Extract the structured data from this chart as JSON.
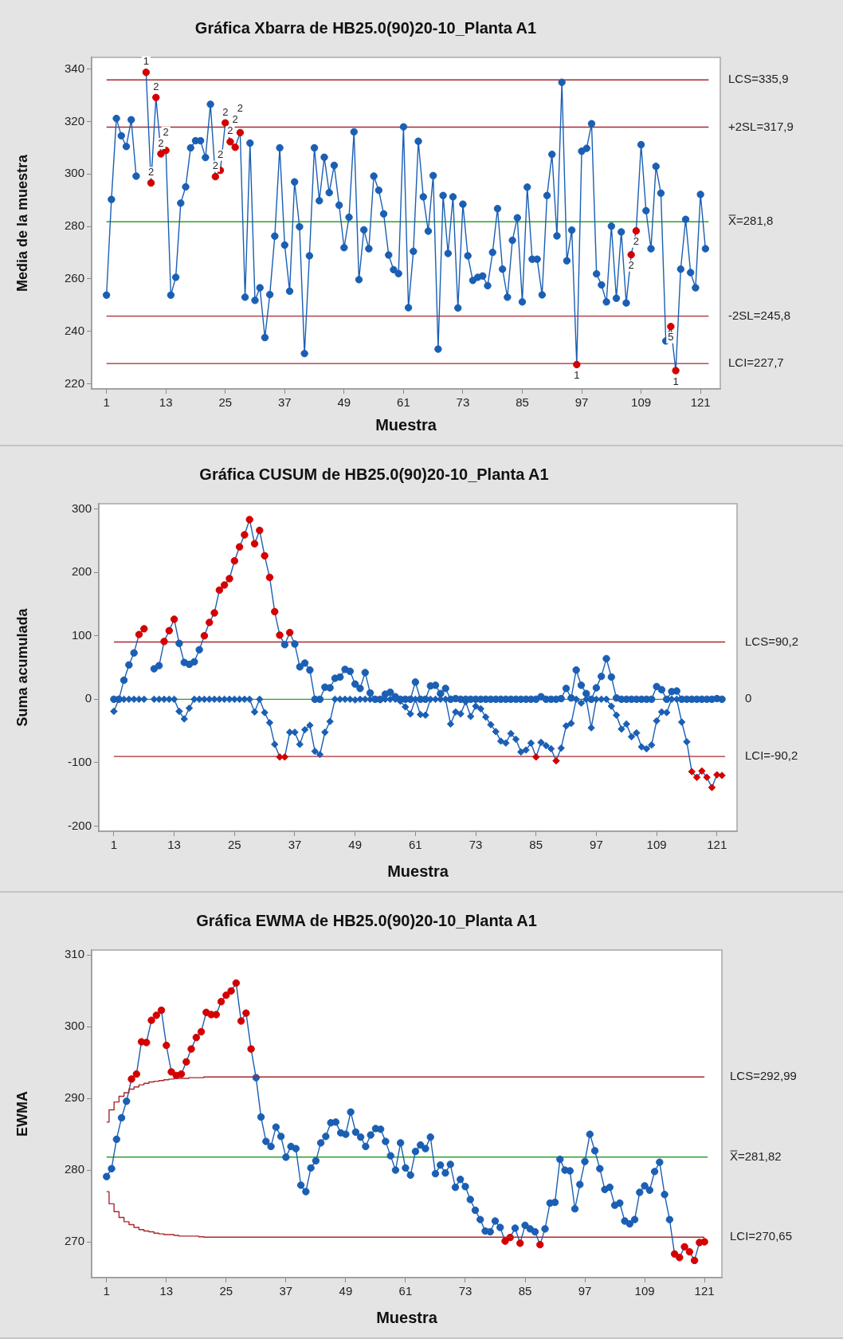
{
  "chart_data": [
    {
      "type": "line",
      "title": "Gráfica Xbarra de HB25.0(90)20-10_Planta A1",
      "xlabel": "Muestra",
      "ylabel": "Media de la muestra",
      "x": [
        1,
        2,
        3,
        4,
        5,
        6,
        7,
        8,
        9,
        10,
        11,
        12,
        13,
        14,
        15,
        16,
        17,
        18,
        19,
        20,
        21,
        22,
        23,
        24,
        25,
        26,
        27,
        28,
        29,
        30,
        31,
        32,
        33,
        34,
        35,
        36,
        37,
        38,
        39,
        40,
        41,
        42,
        43,
        44,
        45,
        46,
        47,
        48,
        49,
        50,
        51,
        52,
        53,
        54,
        55,
        56,
        57,
        58,
        59,
        60,
        61,
        62,
        63,
        64,
        65,
        66,
        67,
        68,
        69,
        70,
        71,
        72,
        73,
        74,
        75,
        76,
        77,
        78,
        79,
        80,
        81,
        82,
        83,
        84,
        85,
        86,
        87,
        88,
        89,
        90,
        91,
        92,
        93,
        94,
        95,
        96,
        97,
        98,
        99,
        100,
        101,
        102,
        103,
        104,
        105,
        106,
        107,
        108,
        109,
        110,
        111,
        112,
        113,
        114,
        115,
        116,
        117,
        118,
        119,
        120,
        121,
        122
      ],
      "xlim": [
        -2,
        125
      ],
      "xticks": [
        1,
        13,
        25,
        37,
        49,
        61,
        73,
        85,
        97,
        109,
        121
      ],
      "ylim": [
        218,
        344.5
      ],
      "yticks": [
        220,
        240,
        260,
        280,
        300,
        320,
        340
      ],
      "series": [
        {
          "color": "#1a5fb4",
          "marker": "circle",
          "values": [
            253.8,
            290.3,
            321.2,
            314.6,
            310.5,
            320.7,
            299.2,
            null,
            338.8,
            296.6,
            329.2,
            307.7,
            309.0,
            253.8,
            260.6,
            288.9,
            295.1,
            310.0,
            312.7,
            312.7,
            306.3,
            326.6,
            299.0,
            301.4,
            319.5,
            312.3,
            310.2,
            315.8,
            253.0,
            311.8,
            251.8,
            256.6,
            237.6,
            254.0,
            276.3,
            310.0,
            272.9,
            255.3,
            297.0,
            279.9,
            231.5,
            268.8,
            310.0,
            289.8,
            306.4,
            292.9,
            303.3,
            288.1,
            271.9,
            283.5,
            316.1,
            259.7,
            278.7,
            271.5,
            299.2,
            293.8,
            284.8,
            269.1,
            263.5,
            262.0,
            318.0,
            249.0,
            270.5,
            312.5,
            291.3,
            278.2,
            299.4,
            233.2,
            291.8,
            269.7,
            291.3,
            248.9,
            288.5,
            268.8,
            259.4,
            260.6,
            261.1,
            257.4,
            270.1,
            286.8,
            263.7,
            253.0,
            274.7,
            283.3,
            251.2,
            295.0,
            267.5,
            267.5,
            253.9,
            291.8,
            307.5,
            276.4,
            335.0,
            266.9,
            278.6,
            227.3,
            308.7,
            309.8,
            319.2,
            261.9,
            257.7,
            251.2,
            280.1,
            252.6,
            277.9,
            250.8,
            269.2,
            278.3,
            311.2,
            286.0,
            271.5,
            302.9,
            292.7,
            236.3,
            241.8,
            225.0,
            263.7,
            282.7,
            262.4,
            256.6,
            292.2,
            271.5
          ],
          "colors": [
            "#1a5fb4",
            "#1a5fb4",
            "#1a5fb4",
            "#1a5fb4",
            "#1a5fb4",
            "#1a5fb4",
            "#1a5fb4",
            "#1a5fb4",
            "#d40000",
            "#d40000",
            "#d40000",
            "#d40000",
            "#d40000",
            "#1a5fb4",
            "#1a5fb4",
            "#1a5fb4",
            "#1a5fb4",
            "#1a5fb4",
            "#1a5fb4",
            "#1a5fb4",
            "#1a5fb4",
            "#1a5fb4",
            "#d40000",
            "#d40000",
            "#d40000",
            "#d40000",
            "#d40000",
            "#d40000",
            "#1a5fb4",
            "#1a5fb4",
            "#1a5fb4",
            "#1a5fb4",
            "#1a5fb4",
            "#1a5fb4",
            "#1a5fb4",
            "#1a5fb4",
            "#1a5fb4",
            "#1a5fb4",
            "#1a5fb4",
            "#1a5fb4",
            "#1a5fb4",
            "#1a5fb4",
            "#1a5fb4",
            "#1a5fb4",
            "#1a5fb4",
            "#1a5fb4",
            "#1a5fb4",
            "#1a5fb4",
            "#1a5fb4",
            "#1a5fb4",
            "#1a5fb4",
            "#1a5fb4",
            "#1a5fb4",
            "#1a5fb4",
            "#1a5fb4",
            "#1a5fb4",
            "#1a5fb4",
            "#1a5fb4",
            "#1a5fb4",
            "#1a5fb4",
            "#1a5fb4",
            "#1a5fb4",
            "#1a5fb4",
            "#1a5fb4",
            "#1a5fb4",
            "#1a5fb4",
            "#1a5fb4",
            "#1a5fb4",
            "#1a5fb4",
            "#1a5fb4",
            "#1a5fb4",
            "#1a5fb4",
            "#1a5fb4",
            "#1a5fb4",
            "#1a5fb4",
            "#1a5fb4",
            "#1a5fb4",
            "#1a5fb4",
            "#1a5fb4",
            "#1a5fb4",
            "#1a5fb4",
            "#1a5fb4",
            "#1a5fb4",
            "#1a5fb4",
            "#1a5fb4",
            "#1a5fb4",
            "#1a5fb4",
            "#1a5fb4",
            "#1a5fb4",
            "#1a5fb4",
            "#1a5fb4",
            "#1a5fb4",
            "#1a5fb4",
            "#1a5fb4",
            "#1a5fb4",
            "#d40000",
            "#1a5fb4",
            "#1a5fb4",
            "#1a5fb4",
            "#1a5fb4",
            "#1a5fb4",
            "#1a5fb4",
            "#1a5fb4",
            "#1a5fb4",
            "#1a5fb4",
            "#1a5fb4",
            "#d40000",
            "#d40000",
            "#1a5fb4",
            "#1a5fb4",
            "#1a5fb4",
            "#1a5fb4",
            "#1a5fb4",
            "#1a5fb4",
            "#d40000",
            "#d40000",
            "#1a5fb4",
            "#1a5fb4",
            "#1a5fb4",
            "#1a5fb4",
            "#1a5fb4",
            "#1a5fb4"
          ]
        }
      ],
      "ref_lines": [
        {
          "axis": "y",
          "value": 335.9,
          "label": "LCS=335,9",
          "color": "#a8282c"
        },
        {
          "axis": "y",
          "value": 317.9,
          "label": "+2SL=317,9",
          "color": "#a8282c"
        },
        {
          "axis": "y",
          "value": 281.8,
          "label": "X̿=281,8",
          "color": "#2e9e2e"
        },
        {
          "axis": "y",
          "value": 245.8,
          "label": "-2SL=245,8",
          "color": "#a8282c"
        },
        {
          "axis": "y",
          "value": 227.7,
          "label": "LCI=227,7",
          "color": "#a8282c"
        }
      ],
      "annotations": [
        {
          "text": "1",
          "x": 9,
          "y": 338.8
        },
        {
          "text": "2",
          "x": 10,
          "y": 296.6
        },
        {
          "text": "2",
          "x": 11,
          "y": 329.2
        },
        {
          "text": "2",
          "x": 12,
          "y": 307.7
        },
        {
          "text": "2",
          "x": 13,
          "y": 309.0
        },
        {
          "text": "2",
          "x": 23,
          "y": 299.0
        },
        {
          "text": "2",
          "x": 24,
          "y": 301.4
        },
        {
          "text": "2",
          "x": 25,
          "y": 319.5
        },
        {
          "text": "2",
          "x": 26,
          "y": 312.3
        },
        {
          "text": "2",
          "x": 27,
          "y": 310.2
        },
        {
          "text": "2",
          "x": 28,
          "y": 315.8
        },
        {
          "text": "1",
          "x": 96,
          "y": 227.3
        },
        {
          "text": "2",
          "x": 107,
          "y": 269.2
        },
        {
          "text": "2",
          "x": 108,
          "y": 278.3
        },
        {
          "text": "5",
          "x": 115,
          "y": 241.8
        },
        {
          "text": "1",
          "x": 116,
          "y": 225.0
        }
      ]
    },
    {
      "type": "line",
      "title": "Gráfica CUSUM de HB25.0(90)20-10_Planta A1",
      "xlabel": "Muestra",
      "ylabel": "Suma acumulada",
      "x": [
        1,
        2,
        3,
        4,
        5,
        6,
        7,
        8,
        9,
        10,
        11,
        12,
        13,
        14,
        15,
        16,
        17,
        18,
        19,
        20,
        21,
        22,
        23,
        24,
        25,
        26,
        27,
        28,
        29,
        30,
        31,
        32,
        33,
        34,
        35,
        36,
        37,
        38,
        39,
        40,
        41,
        42,
        43,
        44,
        45,
        46,
        47,
        48,
        49,
        50,
        51,
        52,
        53,
        54,
        55,
        56,
        57,
        58,
        59,
        60,
        61,
        62,
        63,
        64,
        65,
        66,
        67,
        68,
        69,
        70,
        71,
        72,
        73,
        74,
        75,
        76,
        77,
        78,
        79,
        80,
        81,
        82,
        83,
        84,
        85,
        86,
        87,
        88,
        89,
        90,
        91,
        92,
        93,
        94,
        95,
        96,
        97,
        98,
        99,
        100,
        101,
        102,
        103,
        104,
        105,
        106,
        107,
        108,
        109,
        110,
        111,
        112,
        113,
        114,
        115,
        116,
        117,
        118,
        119,
        120,
        121,
        122
      ],
      "xlim": [
        -2,
        125
      ],
      "xticks": [
        1,
        13,
        25,
        37,
        49,
        61,
        73,
        85,
        97,
        109,
        121
      ],
      "ylim": [
        -208,
        308
      ],
      "yticks": [
        -200,
        -100,
        0,
        100,
        200,
        300
      ],
      "series": [
        {
          "color": "#1a5fb4",
          "marker": "circle",
          "values": [
            0,
            0,
            30,
            54,
            73,
            102,
            111,
            null,
            48,
            53,
            91,
            108,
            126,
            88,
            58,
            55,
            59,
            78,
            100,
            121,
            136,
            172,
            180,
            190,
            218,
            240,
            259,
            283,
            245,
            266,
            226,
            192,
            138,
            101,
            86,
            105,
            87,
            51,
            57,
            46,
            0,
            0,
            19,
            18,
            33,
            35,
            47,
            44,
            24,
            17,
            42,
            10,
            0,
            0,
            8,
            11,
            4,
            0,
            0,
            0,
            27,
            0,
            0,
            21,
            22,
            9,
            17,
            0,
            1,
            0,
            0,
            0,
            0,
            0,
            0,
            0,
            0,
            0,
            0,
            0,
            0,
            0,
            0,
            0,
            0,
            4,
            0,
            0,
            0,
            1,
            17,
            2,
            46,
            22,
            9,
            0,
            18,
            36,
            64,
            35,
            2,
            0,
            0,
            0,
            0,
            0,
            0,
            0,
            20,
            15,
            0,
            12,
            13,
            0,
            0,
            0,
            0,
            0,
            0,
            0,
            1,
            0
          ],
          "colors": [
            "#1a5fb4",
            "#1a5fb4",
            "#1a5fb4",
            "#1a5fb4",
            "#1a5fb4",
            "#d40000",
            "#d40000",
            "#1a5fb4",
            "#1a5fb4",
            "#1a5fb4",
            "#d40000",
            "#d40000",
            "#d40000",
            "#1a5fb4",
            "#1a5fb4",
            "#1a5fb4",
            "#1a5fb4",
            "#1a5fb4",
            "#d40000",
            "#d40000",
            "#d40000",
            "#d40000",
            "#d40000",
            "#d40000",
            "#d40000",
            "#d40000",
            "#d40000",
            "#d40000",
            "#d40000",
            "#d40000",
            "#d40000",
            "#d40000",
            "#d40000",
            "#d40000",
            "#1a5fb4",
            "#d40000",
            "#1a5fb4",
            "#1a5fb4",
            "#1a5fb4",
            "#1a5fb4",
            "#1a5fb4",
            "#1a5fb4",
            "#1a5fb4",
            "#1a5fb4",
            "#1a5fb4",
            "#1a5fb4",
            "#1a5fb4",
            "#1a5fb4",
            "#1a5fb4",
            "#1a5fb4",
            "#1a5fb4",
            "#1a5fb4",
            "#1a5fb4",
            "#1a5fb4",
            "#1a5fb4",
            "#1a5fb4",
            "#1a5fb4",
            "#1a5fb4",
            "#1a5fb4",
            "#1a5fb4",
            "#1a5fb4",
            "#1a5fb4",
            "#1a5fb4",
            "#1a5fb4",
            "#1a5fb4",
            "#1a5fb4",
            "#1a5fb4",
            "#1a5fb4",
            "#1a5fb4",
            "#1a5fb4",
            "#1a5fb4",
            "#1a5fb4",
            "#1a5fb4",
            "#1a5fb4",
            "#1a5fb4",
            "#1a5fb4",
            "#1a5fb4",
            "#1a5fb4",
            "#1a5fb4",
            "#1a5fb4",
            "#1a5fb4",
            "#1a5fb4",
            "#1a5fb4",
            "#1a5fb4",
            "#1a5fb4",
            "#1a5fb4",
            "#1a5fb4",
            "#1a5fb4",
            "#1a5fb4",
            "#1a5fb4",
            "#1a5fb4",
            "#1a5fb4",
            "#1a5fb4",
            "#1a5fb4",
            "#1a5fb4",
            "#1a5fb4",
            "#1a5fb4",
            "#1a5fb4",
            "#1a5fb4",
            "#1a5fb4",
            "#1a5fb4",
            "#1a5fb4",
            "#1a5fb4",
            "#1a5fb4",
            "#1a5fb4",
            "#1a5fb4",
            "#1a5fb4",
            "#1a5fb4",
            "#1a5fb4",
            "#1a5fb4",
            "#1a5fb4",
            "#1a5fb4",
            "#1a5fb4",
            "#1a5fb4",
            "#1a5fb4",
            "#1a5fb4",
            "#1a5fb4",
            "#1a5fb4",
            "#1a5fb4",
            "#1a5fb4",
            "#1a5fb4",
            "#1a5fb4"
          ]
        },
        {
          "color": "#1a5fb4",
          "marker": "diamond",
          "values": [
            -19,
            0,
            0,
            0,
            0,
            0,
            0,
            null,
            0,
            0,
            0,
            0,
            0,
            -19,
            -31,
            -14,
            0,
            0,
            0,
            0,
            0,
            0,
            0,
            0,
            0,
            0,
            0,
            0,
            -20,
            0,
            -21,
            -37,
            -71,
            -91,
            -91,
            -52,
            -52,
            -71,
            -48,
            -41,
            -82,
            -87,
            -52,
            -35,
            0,
            0,
            0,
            0,
            -1,
            0,
            0,
            0,
            0,
            -1,
            0,
            0,
            0,
            -3,
            -12,
            -23,
            0,
            -24,
            -25,
            0,
            0,
            0,
            0,
            -39,
            -20,
            -23,
            -4,
            -27,
            -11,
            -15,
            -28,
            -40,
            -51,
            -66,
            -69,
            -54,
            -63,
            -83,
            -80,
            -69,
            -91,
            -68,
            -73,
            -78,
            -97,
            -77,
            -42,
            -38,
            0,
            -6,
            0,
            -45,
            0,
            0,
            0,
            -11,
            -25,
            -47,
            -39,
            -59,
            -53,
            -75,
            -78,
            -72,
            -34,
            -20,
            -21,
            0,
            0,
            -36,
            -67,
            -114,
            -123,
            -113,
            -123,
            -139,
            -119,
            -120
          ],
          "colors": [
            "#1a5fb4",
            "#1a5fb4",
            "#1a5fb4",
            "#1a5fb4",
            "#1a5fb4",
            "#1a5fb4",
            "#1a5fb4",
            "#1a5fb4",
            "#1a5fb4",
            "#1a5fb4",
            "#1a5fb4",
            "#1a5fb4",
            "#1a5fb4",
            "#1a5fb4",
            "#1a5fb4",
            "#1a5fb4",
            "#1a5fb4",
            "#1a5fb4",
            "#1a5fb4",
            "#1a5fb4",
            "#1a5fb4",
            "#1a5fb4",
            "#1a5fb4",
            "#1a5fb4",
            "#1a5fb4",
            "#1a5fb4",
            "#1a5fb4",
            "#1a5fb4",
            "#1a5fb4",
            "#1a5fb4",
            "#1a5fb4",
            "#1a5fb4",
            "#1a5fb4",
            "#d40000",
            "#d40000",
            "#1a5fb4",
            "#1a5fb4",
            "#1a5fb4",
            "#1a5fb4",
            "#1a5fb4",
            "#1a5fb4",
            "#1a5fb4",
            "#1a5fb4",
            "#1a5fb4",
            "#1a5fb4",
            "#1a5fb4",
            "#1a5fb4",
            "#1a5fb4",
            "#1a5fb4",
            "#1a5fb4",
            "#1a5fb4",
            "#1a5fb4",
            "#1a5fb4",
            "#1a5fb4",
            "#1a5fb4",
            "#1a5fb4",
            "#1a5fb4",
            "#1a5fb4",
            "#1a5fb4",
            "#1a5fb4",
            "#1a5fb4",
            "#1a5fb4",
            "#1a5fb4",
            "#1a5fb4",
            "#1a5fb4",
            "#1a5fb4",
            "#1a5fb4",
            "#1a5fb4",
            "#1a5fb4",
            "#1a5fb4",
            "#1a5fb4",
            "#1a5fb4",
            "#1a5fb4",
            "#1a5fb4",
            "#1a5fb4",
            "#1a5fb4",
            "#1a5fb4",
            "#1a5fb4",
            "#1a5fb4",
            "#1a5fb4",
            "#1a5fb4",
            "#1a5fb4",
            "#1a5fb4",
            "#1a5fb4",
            "#d40000",
            "#1a5fb4",
            "#1a5fb4",
            "#1a5fb4",
            "#d40000",
            "#1a5fb4",
            "#1a5fb4",
            "#1a5fb4",
            "#1a5fb4",
            "#1a5fb4",
            "#1a5fb4",
            "#1a5fb4",
            "#1a5fb4",
            "#1a5fb4",
            "#1a5fb4",
            "#1a5fb4",
            "#1a5fb4",
            "#1a5fb4",
            "#1a5fb4",
            "#1a5fb4",
            "#1a5fb4",
            "#1a5fb4",
            "#1a5fb4",
            "#1a5fb4",
            "#1a5fb4",
            "#1a5fb4",
            "#1a5fb4",
            "#1a5fb4",
            "#1a5fb4",
            "#1a5fb4",
            "#1a5fb4",
            "#d40000",
            "#d40000",
            "#d40000",
            "#d40000",
            "#d40000",
            "#d40000",
            "#d40000"
          ]
        }
      ],
      "ref_lines": [
        {
          "axis": "y",
          "value": 90.2,
          "label": "LCS=90,2",
          "color": "#a8282c"
        },
        {
          "axis": "y",
          "value": 0,
          "label": "0",
          "color": "#2e9e2e"
        },
        {
          "axis": "y",
          "value": -90.2,
          "label": "LCI=-90,2",
          "color": "#a8282c"
        }
      ]
    },
    {
      "type": "line",
      "title": "Gráfica EWMA de HB25.0(90)20-10_Planta A1",
      "xlabel": "Muestra",
      "ylabel": "EWMA",
      "x": [
        1,
        2,
        3,
        4,
        5,
        6,
        7,
        8,
        9,
        10,
        11,
        12,
        13,
        14,
        15,
        16,
        17,
        18,
        19,
        20,
        21,
        22,
        23,
        24,
        25,
        26,
        27,
        28,
        29,
        30,
        31,
        32,
        33,
        34,
        35,
        36,
        37,
        38,
        39,
        40,
        41,
        42,
        43,
        44,
        45,
        46,
        47,
        48,
        49,
        50,
        51,
        52,
        53,
        54,
        55,
        56,
        57,
        58,
        59,
        60,
        61,
        62,
        63,
        64,
        65,
        66,
        67,
        68,
        69,
        70,
        71,
        72,
        73,
        74,
        75,
        76,
        77,
        78,
        79,
        80,
        81,
        82,
        83,
        84,
        85,
        86,
        87,
        88,
        89,
        90,
        91,
        92,
        93,
        94,
        95,
        96,
        97,
        98,
        99,
        100,
        101,
        102,
        103,
        104,
        105,
        106,
        107,
        108,
        109,
        110,
        111,
        112,
        113,
        114,
        115,
        116,
        117,
        118,
        119,
        120,
        121
      ],
      "xlim": [
        -2,
        124.5
      ],
      "xticks": [
        1,
        13,
        25,
        37,
        49,
        61,
        73,
        85,
        97,
        109,
        121
      ],
      "ylim": [
        265,
        310.7
      ],
      "yticks": [
        270,
        280,
        290,
        300,
        310
      ],
      "series": [
        {
          "type": "step",
          "color": "#a8282c",
          "marker": "none",
          "x": [
            1,
            2,
            3,
            4,
            5,
            6,
            7,
            8,
            9,
            10,
            11,
            12,
            13,
            14,
            15,
            16,
            17,
            18,
            19,
            20,
            21,
            121
          ],
          "values": [
            286.7,
            288.4,
            289.5,
            290.3,
            290.8,
            291.3,
            291.6,
            291.9,
            292.1,
            292.3,
            292.4,
            292.5,
            292.6,
            292.7,
            292.8,
            292.8,
            292.8,
            292.9,
            292.9,
            292.9,
            292.99,
            292.99
          ]
        },
        {
          "type": "step",
          "color": "#a8282c",
          "marker": "none",
          "x": [
            1,
            2,
            3,
            4,
            5,
            6,
            7,
            8,
            9,
            10,
            11,
            12,
            13,
            14,
            15,
            16,
            17,
            18,
            19,
            20,
            21,
            121
          ],
          "values": [
            277.0,
            275.3,
            274.2,
            273.4,
            272.8,
            272.4,
            272.0,
            271.7,
            271.5,
            271.4,
            271.2,
            271.1,
            271.0,
            271.0,
            270.9,
            270.8,
            270.8,
            270.8,
            270.8,
            270.7,
            270.65,
            270.65
          ]
        },
        {
          "color": "#1a5fb4",
          "marker": "circle",
          "values": [
            279.1,
            280.2,
            284.3,
            287.3,
            289.6,
            292.7,
            293.4,
            297.9,
            297.8,
            300.9,
            301.6,
            302.3,
            297.4,
            293.7,
            293.2,
            293.4,
            295.1,
            296.9,
            298.5,
            299.3,
            302.0,
            301.7,
            301.7,
            303.5,
            304.4,
            305.0,
            306.1,
            300.8,
            301.9,
            296.9,
            292.9,
            287.4,
            284.0,
            283.3,
            286.0,
            284.7,
            281.8,
            283.3,
            283.0,
            277.9,
            277.0,
            280.3,
            281.3,
            283.8,
            284.7,
            286.6,
            286.7,
            285.2,
            285.0,
            288.1,
            285.3,
            284.6,
            283.3,
            284.9,
            285.8,
            285.7,
            284.0,
            282.0,
            280.0,
            283.8,
            280.3,
            279.3,
            282.6,
            283.5,
            283.0,
            284.6,
            279.5,
            280.7,
            279.6,
            280.8,
            277.6,
            278.7,
            277.7,
            275.9,
            274.4,
            273.1,
            271.5,
            271.4,
            272.9,
            272.0,
            270.1,
            270.6,
            271.9,
            269.8,
            272.3,
            271.8,
            271.4,
            269.6,
            271.8,
            275.4,
            275.5,
            281.5,
            280.0,
            279.9,
            274.6,
            278.0,
            281.2,
            285.0,
            282.7,
            280.2,
            277.3,
            277.6,
            275.1,
            275.4,
            272.9,
            272.5,
            273.1,
            276.9,
            277.8,
            277.2,
            279.8,
            281.1,
            276.6,
            273.1,
            268.3,
            267.8,
            269.3,
            268.6,
            267.4,
            269.9,
            270.0
          ],
          "colors": [
            "#1a5fb4",
            "#1a5fb4",
            "#1a5fb4",
            "#1a5fb4",
            "#1a5fb4",
            "#d40000",
            "#d40000",
            "#d40000",
            "#d40000",
            "#d40000",
            "#d40000",
            "#d40000",
            "#d40000",
            "#d40000",
            "#d40000",
            "#d40000",
            "#d40000",
            "#d40000",
            "#d40000",
            "#d40000",
            "#d40000",
            "#d40000",
            "#d40000",
            "#d40000",
            "#d40000",
            "#d40000",
            "#d40000",
            "#d40000",
            "#d40000",
            "#d40000",
            "#1a5fb4",
            "#1a5fb4",
            "#1a5fb4",
            "#1a5fb4",
            "#1a5fb4",
            "#1a5fb4",
            "#1a5fb4",
            "#1a5fb4",
            "#1a5fb4",
            "#1a5fb4",
            "#1a5fb4",
            "#1a5fb4",
            "#1a5fb4",
            "#1a5fb4",
            "#1a5fb4",
            "#1a5fb4",
            "#1a5fb4",
            "#1a5fb4",
            "#1a5fb4",
            "#1a5fb4",
            "#1a5fb4",
            "#1a5fb4",
            "#1a5fb4",
            "#1a5fb4",
            "#1a5fb4",
            "#1a5fb4",
            "#1a5fb4",
            "#1a5fb4",
            "#1a5fb4",
            "#1a5fb4",
            "#1a5fb4",
            "#1a5fb4",
            "#1a5fb4",
            "#1a5fb4",
            "#1a5fb4",
            "#1a5fb4",
            "#1a5fb4",
            "#1a5fb4",
            "#1a5fb4",
            "#1a5fb4",
            "#1a5fb4",
            "#1a5fb4",
            "#1a5fb4",
            "#1a5fb4",
            "#1a5fb4",
            "#1a5fb4",
            "#1a5fb4",
            "#1a5fb4",
            "#1a5fb4",
            "#1a5fb4",
            "#d40000",
            "#d40000",
            "#1a5fb4",
            "#d40000",
            "#1a5fb4",
            "#1a5fb4",
            "#1a5fb4",
            "#d40000",
            "#1a5fb4",
            "#1a5fb4",
            "#1a5fb4",
            "#1a5fb4",
            "#1a5fb4",
            "#1a5fb4",
            "#1a5fb4",
            "#1a5fb4",
            "#1a5fb4",
            "#1a5fb4",
            "#1a5fb4",
            "#1a5fb4",
            "#1a5fb4",
            "#1a5fb4",
            "#1a5fb4",
            "#1a5fb4",
            "#1a5fb4",
            "#1a5fb4",
            "#1a5fb4",
            "#1a5fb4",
            "#1a5fb4",
            "#1a5fb4",
            "#1a5fb4",
            "#1a5fb4",
            "#1a5fb4",
            "#1a5fb4",
            "#d40000",
            "#d40000",
            "#d40000",
            "#d40000",
            "#d40000",
            "#d40000",
            "#d40000"
          ]
        }
      ],
      "ref_lines": [
        {
          "axis": "y",
          "value": 281.82,
          "label": "X̿=281,82",
          "color": "#2e9e2e"
        }
      ],
      "annotations": [
        {
          "text": "LCS=292,99",
          "x": 121,
          "y": 292.99
        },
        {
          "text": "LCI=270,65",
          "x": 121,
          "y": 270.65
        }
      ]
    }
  ]
}
